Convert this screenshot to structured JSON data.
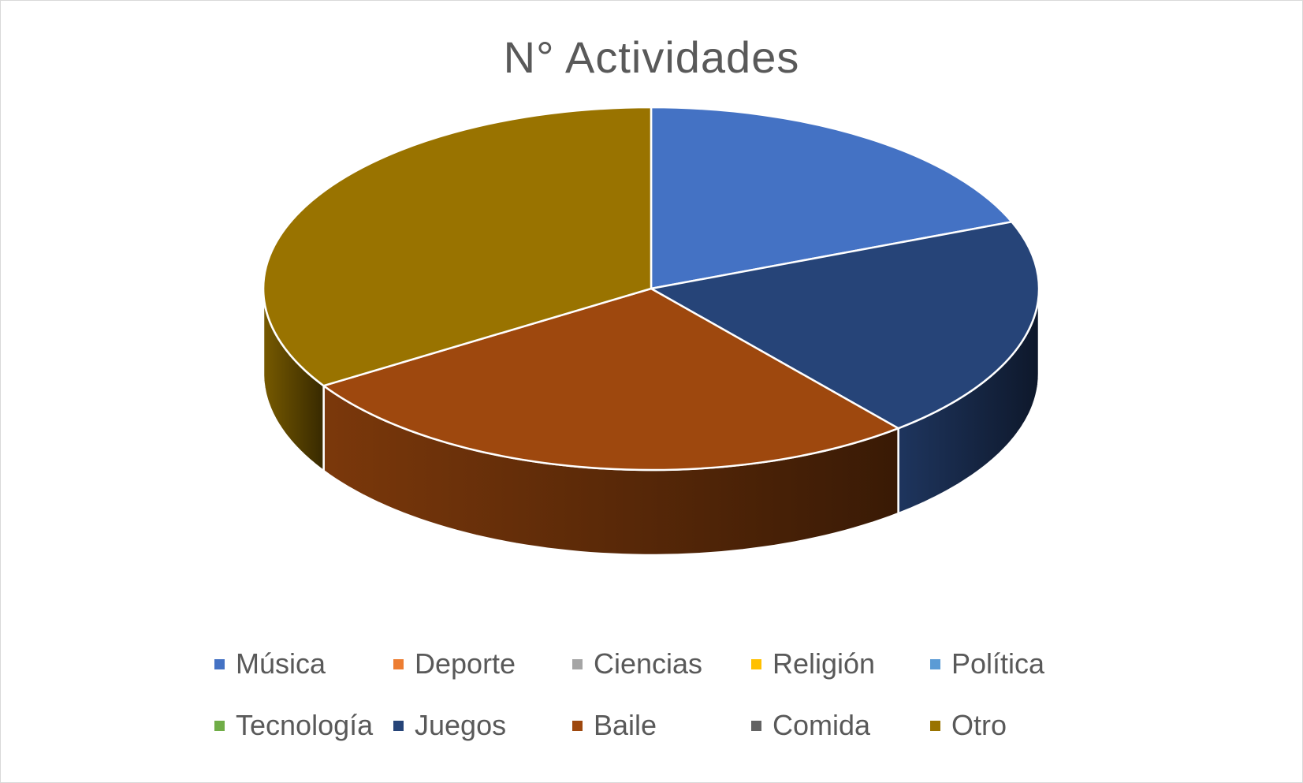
{
  "chart_data": {
    "type": "pie",
    "title": "N° Actividades",
    "legend_position": "bottom",
    "categories": [
      "Música",
      "Deporte",
      "Ciencias",
      "Religión",
      "Política",
      "Tecnología",
      "Juegos",
      "Baile",
      "Comida",
      "Otro"
    ],
    "values": [
      19,
      0,
      0,
      0,
      0,
      0,
      20,
      27,
      0,
      34
    ],
    "colors": [
      "#4472C4",
      "#ED7D31",
      "#A5A5A5",
      "#FFC000",
      "#5B9BD5",
      "#70AD47",
      "#264478",
      "#9E480E",
      "#636363",
      "#997300"
    ]
  }
}
